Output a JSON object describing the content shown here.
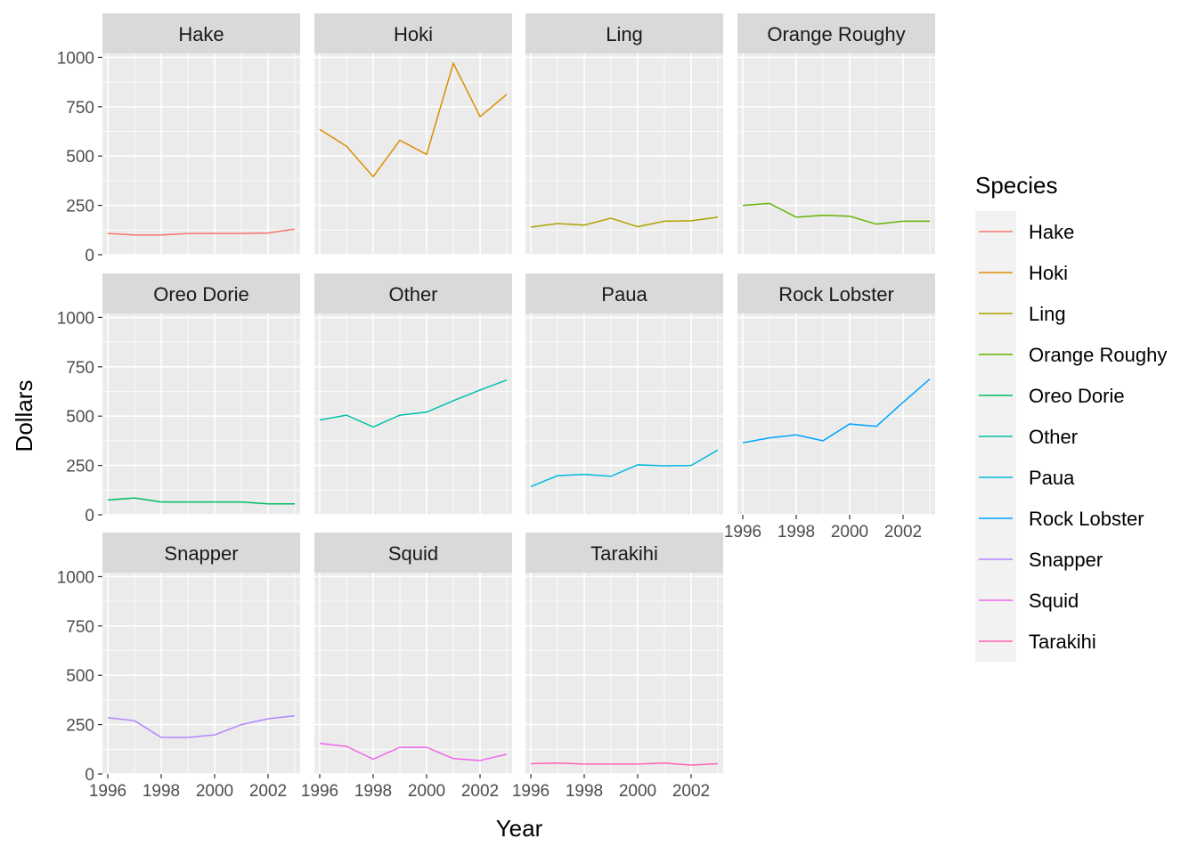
{
  "chart_data": {
    "type": "line",
    "xlabel": "Year",
    "ylabel": "Dollars",
    "x": [
      1996,
      1997,
      1998,
      1999,
      2000,
      2001,
      2002,
      2003
    ],
    "xticks": [
      1996,
      1998,
      2000,
      2002
    ],
    "xlim": [
      1995.8,
      2003.2
    ],
    "yticks": [
      0,
      250,
      500,
      750,
      1000
    ],
    "ylim": [
      0,
      1020
    ],
    "grid": true,
    "legend": {
      "title": "Species",
      "placement": "right"
    },
    "series": [
      {
        "name": "Hake",
        "color": "#F8766D",
        "values": [
          108,
          100,
          100,
          108,
          108,
          108,
          110,
          130
        ]
      },
      {
        "name": "Hoki",
        "color": "#DB8E00",
        "values": [
          635,
          550,
          395,
          580,
          508,
          970,
          700,
          812
        ]
      },
      {
        "name": "Ling",
        "color": "#AEA200",
        "values": [
          140,
          158,
          150,
          185,
          142,
          170,
          172,
          190
        ]
      },
      {
        "name": "Orange Roughy",
        "color": "#64B200",
        "values": [
          250,
          260,
          190,
          200,
          195,
          155,
          170,
          170
        ]
      },
      {
        "name": "Oreo Dorie",
        "color": "#00BD5C",
        "values": [
          75,
          85,
          65,
          65,
          65,
          65,
          55,
          55
        ]
      },
      {
        "name": "Other",
        "color": "#00C1A7",
        "values": [
          480,
          505,
          445,
          505,
          520,
          578,
          632,
          683
        ]
      },
      {
        "name": "Paua",
        "color": "#00BADE",
        "values": [
          143,
          198,
          205,
          195,
          253,
          248,
          250,
          328
        ]
      },
      {
        "name": "Rock Lobster",
        "color": "#00A6FF",
        "values": [
          365,
          390,
          405,
          375,
          460,
          448,
          570,
          688
        ]
      },
      {
        "name": "Snapper",
        "color": "#B385FF",
        "values": [
          285,
          270,
          185,
          185,
          198,
          250,
          280,
          295
        ]
      },
      {
        "name": "Squid",
        "color": "#EF67EB",
        "values": [
          155,
          140,
          75,
          135,
          135,
          78,
          68,
          100
        ]
      },
      {
        "name": "Tarakihi",
        "color": "#FF63B6",
        "values": [
          52,
          55,
          50,
          50,
          50,
          55,
          45,
          52
        ]
      }
    ]
  },
  "colors": {
    "panel_background": "#EBEBEB",
    "grid_major": "#FFFFFF",
    "strip_background": "#D9D9D9",
    "legend_key_background": "#F2F2F2"
  }
}
